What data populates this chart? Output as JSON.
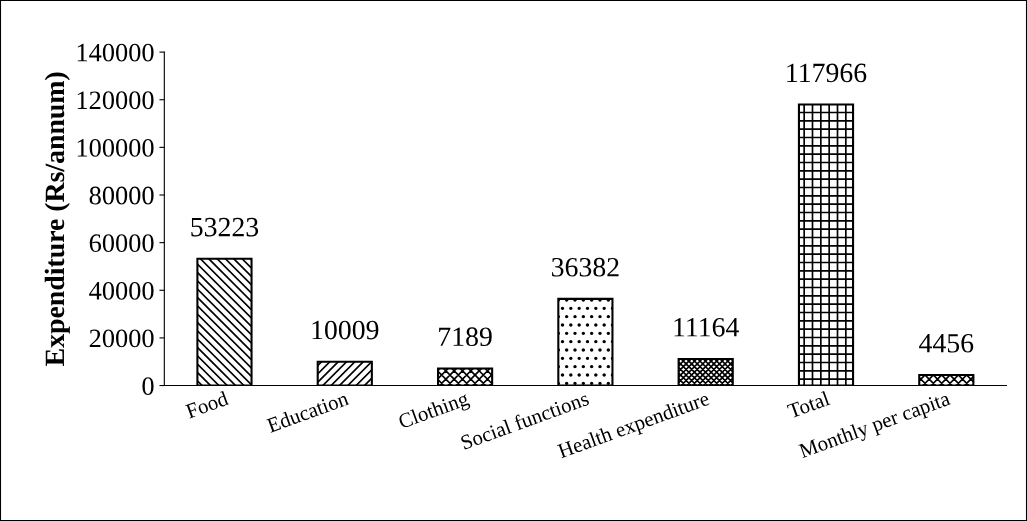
{
  "chart_data": {
    "type": "bar",
    "ylabel": "Expenditure (Rs/annum)",
    "categories": [
      "Food",
      "Education",
      "Clothing",
      "Social functions",
      "Health expenditure",
      "Total",
      "Monthly per capita"
    ],
    "values": [
      53223,
      10009,
      7189,
      36382,
      11164,
      117966,
      4456
    ],
    "color": "#000000",
    "ylim": [
      0,
      140000
    ],
    "yticks": [
      0,
      20000,
      40000,
      60000,
      80000,
      100000,
      120000,
      140000
    ],
    "grid": false,
    "data_labels": true
  }
}
